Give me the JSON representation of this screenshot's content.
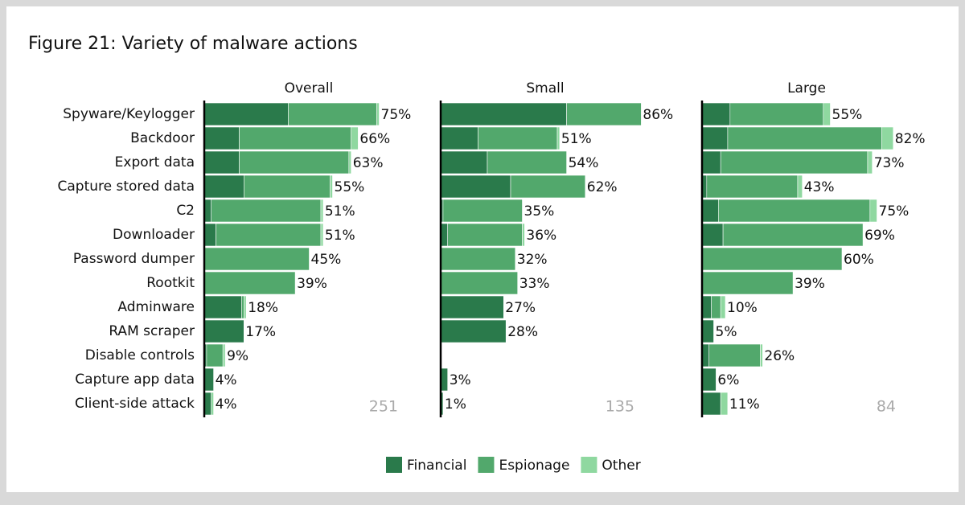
{
  "title": "Figure 21: Variety of malware actions",
  "chart_data": [
    {
      "type": "bar",
      "orientation": "horizontal",
      "stacked": true,
      "title": "Overall",
      "n": "251",
      "categories": [
        "Spyware/Keylogger",
        "Backdoor",
        "Export data",
        "Capture stored data",
        "C2",
        "Downloader",
        "Password dumper",
        "Rootkit",
        "Adminware",
        "RAM scraper",
        "Disable controls",
        "Capture app data",
        "Client-side attack"
      ],
      "xlim": [
        0,
        100
      ],
      "series": [
        {
          "name": "Financial",
          "color": "#2a7a4b",
          "values": [
            36,
            15,
            15,
            17,
            3,
            5,
            0,
            0,
            16,
            17,
            1,
            4,
            3
          ]
        },
        {
          "name": "Espionage",
          "color": "#52a86c",
          "values": [
            38,
            48,
            47,
            37,
            47,
            45,
            45,
            39,
            1,
            0,
            7,
            0,
            0
          ]
        },
        {
          "name": "Other",
          "color": "#8fd8a0",
          "values": [
            1,
            3,
            1,
            1,
            1,
            1,
            0,
            0,
            1,
            0,
            1,
            0,
            1
          ]
        }
      ],
      "totals": [
        75,
        66,
        63,
        55,
        51,
        51,
        45,
        39,
        18,
        17,
        9,
        4,
        4
      ],
      "total_labels": [
        "75%",
        "66%",
        "63%",
        "55%",
        "51%",
        "51%",
        "45%",
        "39%",
        "18%",
        "17%",
        "9%",
        "4%",
        "4%"
      ]
    },
    {
      "type": "bar",
      "orientation": "horizontal",
      "stacked": true,
      "title": "Small",
      "n": "135",
      "xlim": [
        0,
        100
      ],
      "series": [
        {
          "color": "#2a7a4b",
          "values": [
            54,
            16,
            20,
            30,
            1,
            3,
            0,
            0,
            27,
            28,
            null,
            3,
            1
          ]
        },
        {
          "color": "#52a86c",
          "values": [
            32,
            34,
            34,
            32,
            34,
            32,
            32,
            33,
            0,
            0,
            null,
            0,
            0
          ]
        },
        {
          "color": "#8fd8a0",
          "values": [
            0,
            1,
            0,
            0,
            0,
            1,
            0,
            0,
            0,
            0,
            null,
            0,
            0
          ]
        }
      ],
      "totals": [
        86,
        51,
        54,
        62,
        35,
        36,
        32,
        33,
        27,
        28,
        null,
        3,
        1
      ],
      "total_labels": [
        "86%",
        "51%",
        "54%",
        "62%",
        "35%",
        "36%",
        "32%",
        "33%",
        "27%",
        "28%",
        null,
        "3%",
        "1%"
      ]
    },
    {
      "type": "bar",
      "orientation": "horizontal",
      "stacked": true,
      "title": "Large",
      "n": "84",
      "xlim": [
        0,
        100
      ],
      "series": [
        {
          "color": "#2a7a4b",
          "values": [
            12,
            11,
            8,
            2,
            7,
            9,
            0,
            0,
            4,
            5,
            3,
            6,
            8
          ]
        },
        {
          "color": "#52a86c",
          "values": [
            40,
            66,
            63,
            39,
            65,
            60,
            60,
            39,
            4,
            0,
            22,
            0,
            0
          ]
        },
        {
          "color": "#8fd8a0",
          "values": [
            3,
            5,
            2,
            2,
            3,
            0,
            0,
            0,
            2,
            0,
            1,
            0,
            3
          ]
        }
      ],
      "totals": [
        55,
        82,
        73,
        43,
        75,
        69,
        60,
        39,
        10,
        5,
        26,
        6,
        11
      ],
      "total_labels": [
        "55%",
        "82%",
        "73%",
        "43%",
        "75%",
        "69%",
        "60%",
        "39%",
        "10%",
        "5%",
        "26%",
        "6%",
        "11%"
      ]
    }
  ]
}
